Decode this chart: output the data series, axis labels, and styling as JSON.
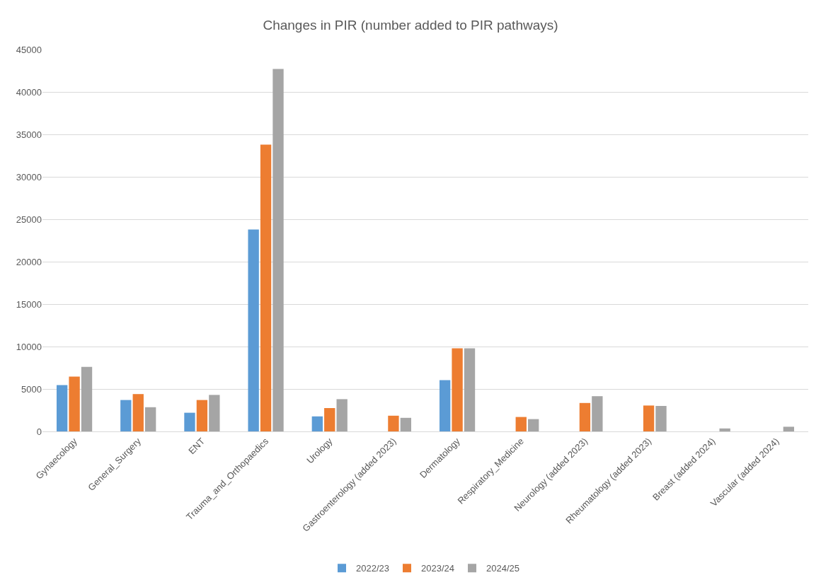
{
  "chart_data": {
    "type": "bar",
    "title": "Changes in PIR (number added to PIR pathways)",
    "categories": [
      "Gynaecology",
      "General_Surgery",
      "ENT",
      "Trauma_and_Orthopaedics",
      "Urology",
      "Gastroenterology (added 2023)",
      "Dermatology",
      "Respiratory_Medicine",
      "Neurology (added 2023)",
      "Rheumatology (added 2023)",
      "Breast (added 2024)",
      "Vascular (added 2024)"
    ],
    "series": [
      {
        "name": "2022/23",
        "color": "#5b9bd5",
        "values": [
          5450,
          3700,
          2200,
          23800,
          1770,
          null,
          6050,
          null,
          null,
          null,
          null,
          null
        ]
      },
      {
        "name": "2023/24",
        "color": "#ed7d31",
        "values": [
          6450,
          4400,
          3700,
          33800,
          2750,
          1850,
          9800,
          1700,
          3350,
          3050,
          null,
          null
        ]
      },
      {
        "name": "2024/25",
        "color": "#a5a5a5",
        "values": [
          7600,
          2850,
          4300,
          42700,
          3800,
          1600,
          9800,
          1450,
          4150,
          3000,
          350,
          550
        ]
      }
    ],
    "ylim": [
      0,
      45000
    ],
    "yticks": [
      0,
      5000,
      10000,
      15000,
      20000,
      25000,
      30000,
      35000,
      40000,
      45000
    ],
    "grid": "y",
    "legend": "bottom"
  }
}
